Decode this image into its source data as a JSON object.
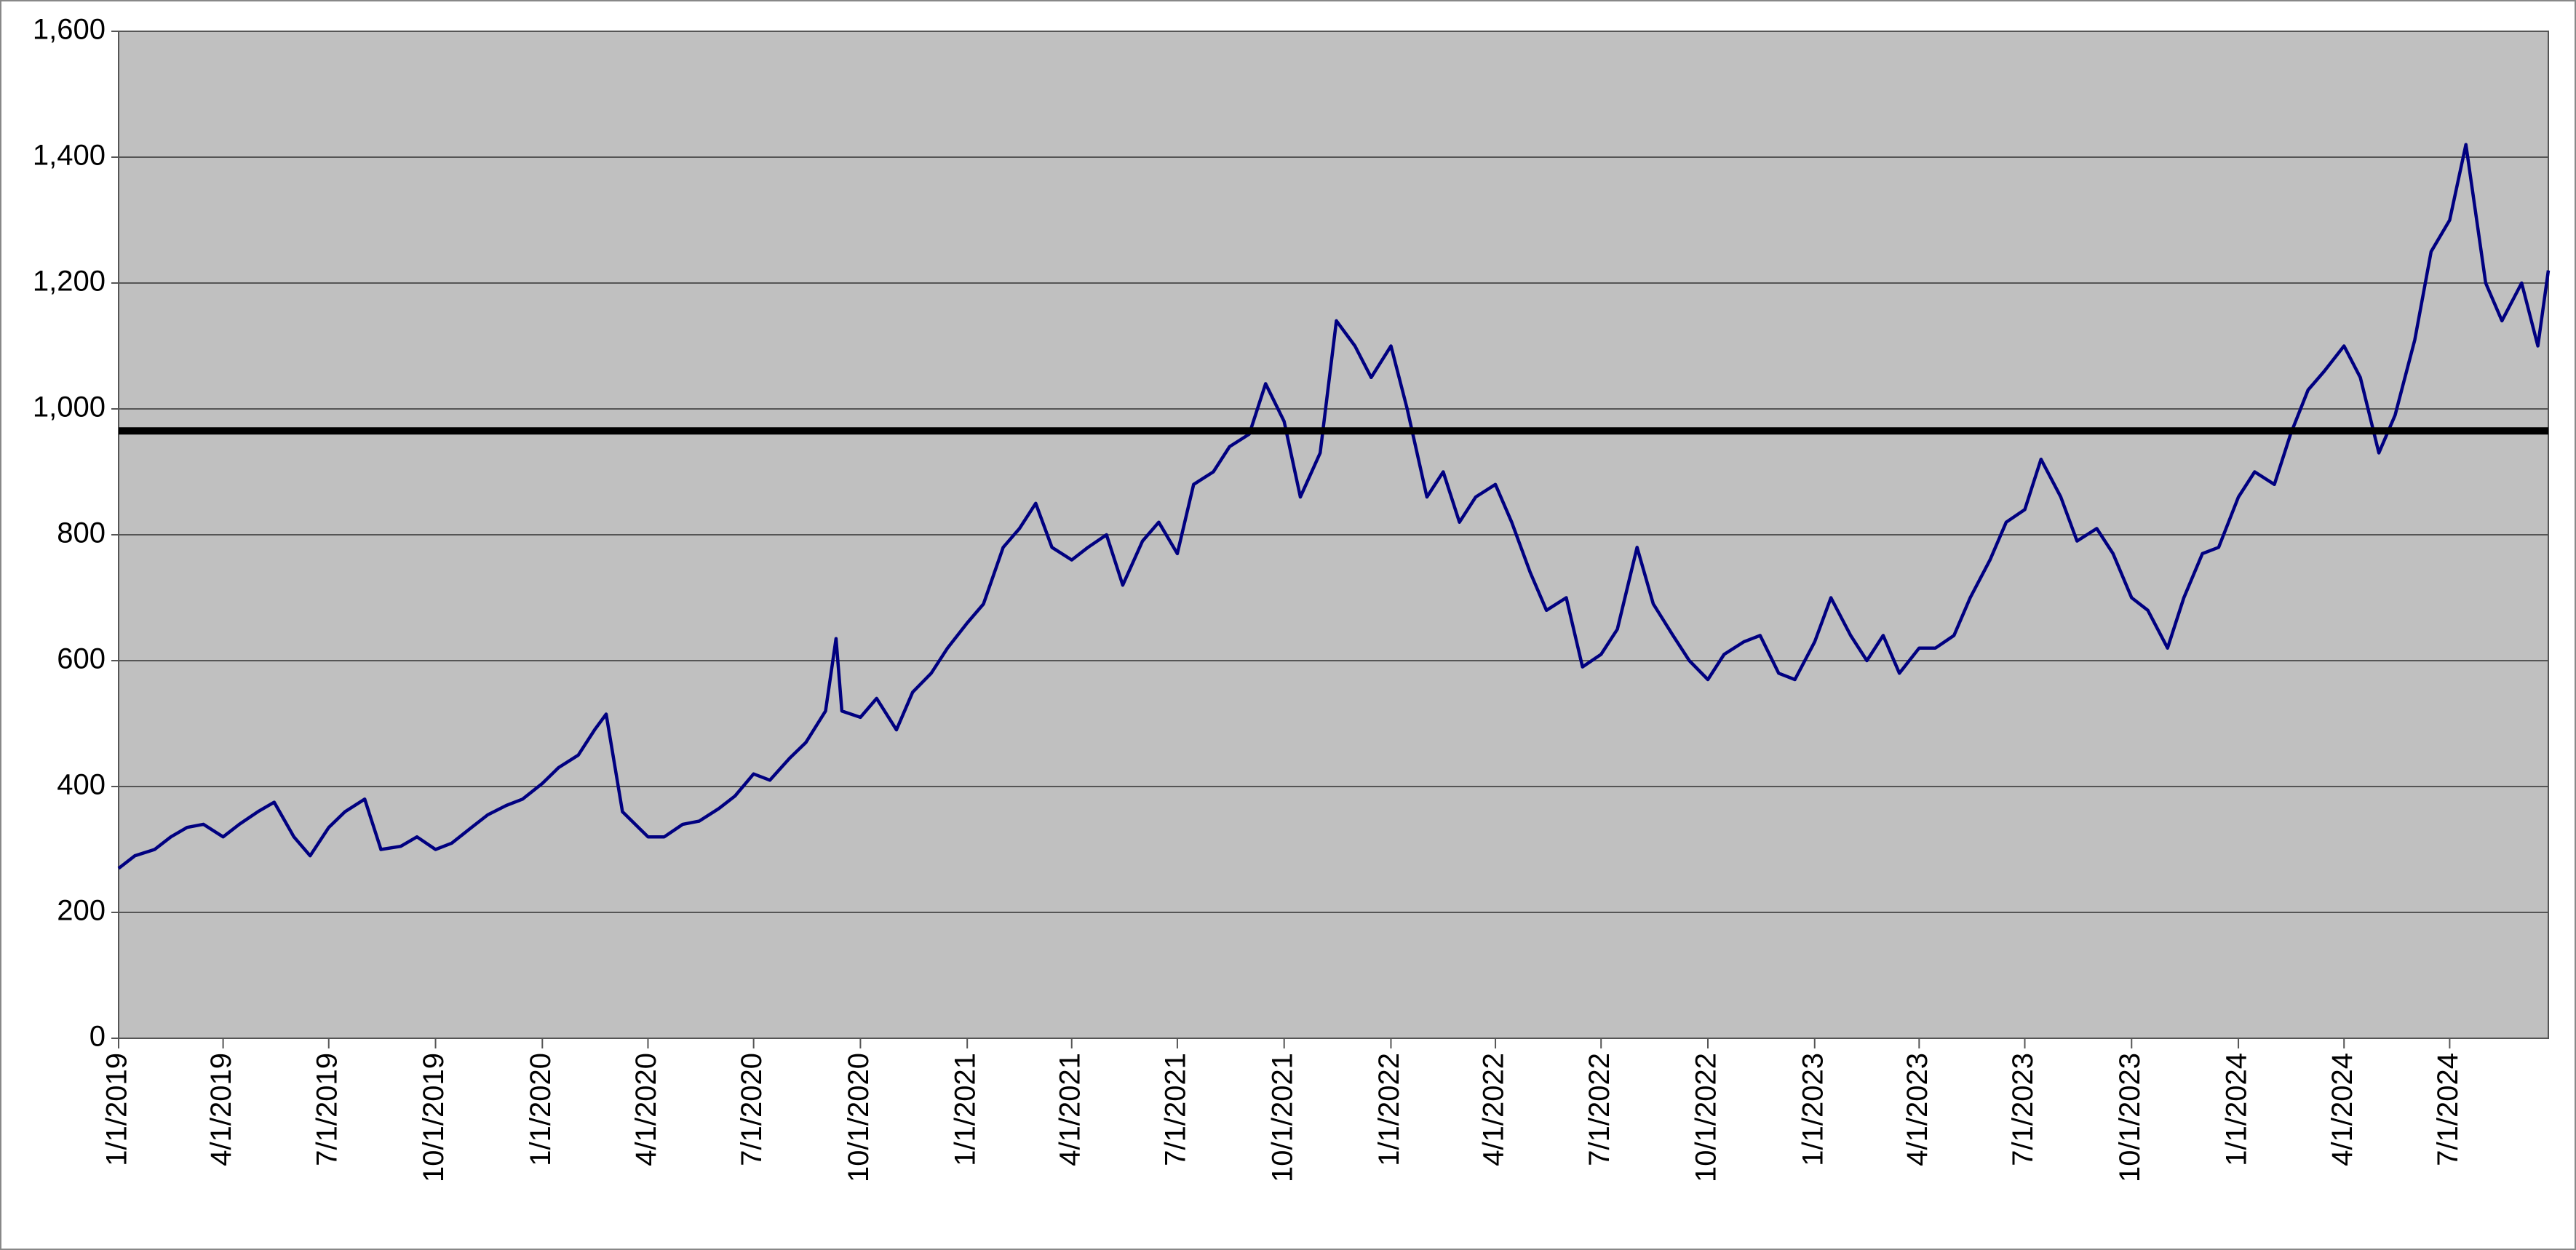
{
  "chart_data": {
    "type": "line",
    "x": [
      "1/1/2019",
      "1/15/2019",
      "2/1/2019",
      "2/15/2019",
      "3/1/2019",
      "3/15/2019",
      "4/1/2019",
      "4/15/2019",
      "5/1/2019",
      "5/15/2019",
      "6/1/2019",
      "6/15/2019",
      "7/1/2019",
      "7/15/2019",
      "8/1/2019",
      "8/15/2019",
      "9/1/2019",
      "9/15/2019",
      "10/1/2019",
      "10/15/2019",
      "11/1/2019",
      "11/15/2019",
      "12/1/2019",
      "12/15/2019",
      "1/1/2020",
      "1/15/2020",
      "2/1/2020",
      "2/15/2020",
      "2/25/2020",
      "3/10/2020",
      "4/1/2020",
      "4/15/2020",
      "5/1/2020",
      "5/15/2020",
      "6/1/2020",
      "6/15/2020",
      "7/1/2020",
      "7/15/2020",
      "8/1/2020",
      "8/15/2020",
      "9/1/2020",
      "9/10/2020",
      "9/15/2020",
      "10/1/2020",
      "10/15/2020",
      "11/1/2020",
      "11/15/2020",
      "12/1/2020",
      "12/15/2020",
      "1/1/2021",
      "1/15/2021",
      "2/1/2021",
      "2/15/2021",
      "3/1/2021",
      "3/15/2021",
      "4/1/2021",
      "4/15/2021",
      "5/1/2021",
      "5/15/2021",
      "6/1/2021",
      "6/15/2021",
      "7/1/2021",
      "7/15/2021",
      "8/1/2021",
      "8/15/2021",
      "9/1/2021",
      "9/15/2021",
      "10/1/2021",
      "10/15/2021",
      "11/1/2021",
      "11/15/2021",
      "12/1/2021",
      "12/15/2021",
      "1/1/2022",
      "1/15/2022",
      "2/1/2022",
      "2/15/2022",
      "3/1/2022",
      "3/15/2022",
      "4/1/2022",
      "4/15/2022",
      "5/1/2022",
      "5/15/2022",
      "6/1/2022",
      "6/15/2022",
      "7/1/2022",
      "7/15/2022",
      "8/1/2022",
      "8/15/2022",
      "9/1/2022",
      "9/15/2022",
      "10/1/2022",
      "10/15/2022",
      "11/1/2022",
      "11/15/2022",
      "12/1/2022",
      "12/15/2022",
      "1/1/2023",
      "1/15/2023",
      "2/1/2023",
      "2/15/2023",
      "3/1/2023",
      "3/15/2023",
      "4/1/2023",
      "4/15/2023",
      "5/1/2023",
      "5/15/2023",
      "6/1/2023",
      "6/15/2023",
      "7/1/2023",
      "7/15/2023",
      "8/1/2023",
      "8/15/2023",
      "9/1/2023",
      "9/15/2023",
      "10/1/2023",
      "10/15/2023",
      "11/1/2023",
      "11/15/2023",
      "12/1/2023",
      "12/15/2023",
      "1/1/2024",
      "1/15/2024",
      "2/1/2024",
      "2/15/2024",
      "3/1/2024",
      "3/15/2024",
      "4/1/2024",
      "4/15/2024",
      "5/1/2024",
      "5/15/2024",
      "6/1/2024",
      "6/15/2024",
      "7/1/2024",
      "7/15/2024",
      "8/1/2024",
      "8/15/2024",
      "9/1/2024",
      "9/15/2024",
      "9/24/2024"
    ],
    "series": [
      {
        "color": "#000080",
        "values": [
          270,
          290,
          300,
          320,
          335,
          340,
          320,
          340,
          360,
          375,
          320,
          290,
          335,
          360,
          380,
          300,
          305,
          320,
          300,
          310,
          335,
          355,
          370,
          380,
          405,
          430,
          450,
          490,
          515,
          360,
          320,
          320,
          340,
          345,
          365,
          385,
          420,
          410,
          445,
          470,
          520,
          635,
          520,
          510,
          540,
          490,
          550,
          580,
          620,
          660,
          690,
          780,
          810,
          850,
          780,
          760,
          780,
          800,
          720,
          790,
          820,
          770,
          880,
          900,
          940,
          960,
          1040,
          980,
          860,
          930,
          1140,
          1100,
          1050,
          1100,
          1000,
          860,
          900,
          820,
          860,
          880,
          820,
          740,
          680,
          700,
          590,
          610,
          650,
          780,
          690,
          640,
          600,
          570,
          610,
          630,
          640,
          580,
          570,
          630,
          700,
          640,
          600,
          640,
          580,
          620,
          620,
          640,
          700,
          760,
          820,
          840,
          920,
          860,
          790,
          810,
          770,
          700,
          680,
          620,
          700,
          770,
          780,
          860,
          900,
          880,
          960,
          1030,
          1060,
          1100,
          1050,
          930,
          990,
          1110,
          1250,
          1300,
          1420,
          1200,
          1140,
          1200,
          1100,
          1220
        ]
      }
    ],
    "reference_line": {
      "value": 965,
      "color": "#000000"
    },
    "xlim": [
      "1/1/2019",
      "9/24/2024"
    ],
    "xticks": [
      "1/1/2019",
      "4/1/2019",
      "7/1/2019",
      "10/1/2019",
      "1/1/2020",
      "4/1/2020",
      "7/1/2020",
      "10/1/2020",
      "1/1/2021",
      "4/1/2021",
      "7/1/2021",
      "10/1/2021",
      "1/1/2022",
      "4/1/2022",
      "7/1/2022",
      "10/1/2022",
      "1/1/2023",
      "4/1/2023",
      "7/1/2023",
      "10/1/2023",
      "1/1/2024",
      "4/1/2024",
      "7/1/2024"
    ],
    "ylim": [
      0,
      1600
    ],
    "yticks": [
      0,
      200,
      400,
      600,
      800,
      {
        "value": 1000,
        "label": "1,000"
      },
      {
        "value": 1200,
        "label": "1,200"
      },
      {
        "value": 1400,
        "label": "1,400"
      },
      {
        "value": 1600,
        "label": "1,600"
      }
    ],
    "grid": true,
    "plot_background": "#c0c0c0"
  }
}
